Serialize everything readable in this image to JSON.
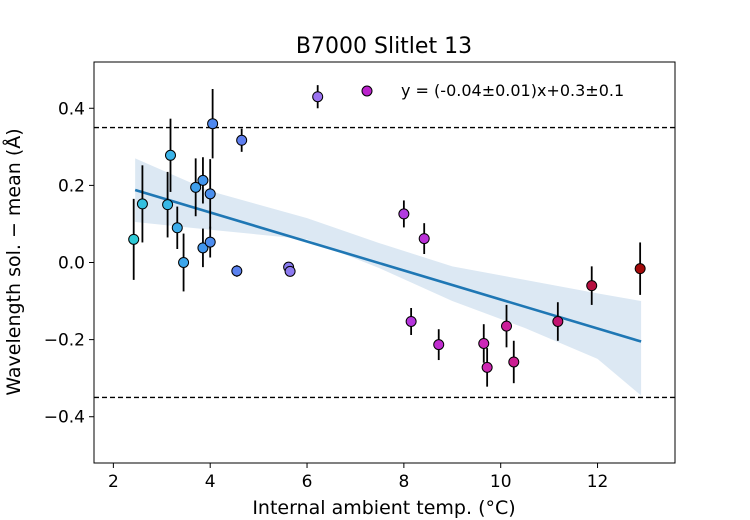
{
  "chart_data": {
    "type": "scatter",
    "title": "B7000 Slitlet 13",
    "xlabel": "Internal ambient temp. (°C)",
    "ylabel": "Wavelength sol. − mean (Å)",
    "xlim": [
      1.6,
      13.6
    ],
    "ylim": [
      -0.52,
      0.52
    ],
    "xticks": [
      2,
      4,
      6,
      8,
      10,
      12
    ],
    "yticks": [
      -0.4,
      -0.2,
      0.0,
      0.2,
      0.4
    ],
    "xtick_labels": [
      "2",
      "4",
      "6",
      "8",
      "10",
      "12"
    ],
    "ytick_labels": [
      "−0.4",
      "−0.2",
      "0.0",
      "0.2",
      "0.4"
    ],
    "threshold_lines": [
      0.35,
      -0.35
    ],
    "legend_label": "y = (-0.04±0.01)x+0.3±0.1",
    "legend_marker_color": "#bb22cc",
    "fit": {
      "x": [
        2.45,
        12.9
      ],
      "y": [
        0.188,
        -0.205
      ],
      "color": "#1f77b4",
      "band_color": "#dce8f3",
      "band": [
        {
          "x": 2.45,
          "lo": 0.105,
          "hi": 0.27
        },
        {
          "x": 4.0,
          "lo": 0.085,
          "hi": 0.185
        },
        {
          "x": 6.0,
          "lo": 0.06,
          "hi": 0.115
        },
        {
          "x": 7.5,
          "lo": -0.015,
          "hi": 0.05
        },
        {
          "x": 9.0,
          "lo": -0.1,
          "hi": -0.01
        },
        {
          "x": 10.5,
          "lo": -0.17,
          "hi": -0.045
        },
        {
          "x": 12.0,
          "lo": -0.25,
          "hi": -0.08
        },
        {
          "x": 12.9,
          "lo": -0.345,
          "hi": -0.1
        }
      ]
    },
    "points": [
      {
        "x": 2.42,
        "y": 0.06,
        "err": 0.105,
        "color": "#2ec9d6"
      },
      {
        "x": 2.6,
        "y": 0.152,
        "err": 0.1,
        "color": "#33c0e0"
      },
      {
        "x": 3.12,
        "y": 0.15,
        "err": 0.085,
        "color": "#37b8e6"
      },
      {
        "x": 3.18,
        "y": 0.278,
        "err": 0.095,
        "color": "#3ab3e8"
      },
      {
        "x": 3.32,
        "y": 0.09,
        "err": 0.055,
        "color": "#3aacea"
      },
      {
        "x": 3.45,
        "y": 0.0,
        "err": 0.075,
        "color": "#3ca6eb"
      },
      {
        "x": 3.7,
        "y": 0.195,
        "err": 0.075,
        "color": "#3e9fec"
      },
      {
        "x": 3.85,
        "y": 0.038,
        "err": 0.05,
        "color": "#4196ed"
      },
      {
        "x": 3.85,
        "y": 0.213,
        "err": 0.06,
        "color": "#4396ee"
      },
      {
        "x": 4.0,
        "y": 0.178,
        "err": 0.09,
        "color": "#4a8fee"
      },
      {
        "x": 4.0,
        "y": 0.053,
        "err": 0.04,
        "color": "#4c8cee"
      },
      {
        "x": 4.05,
        "y": 0.36,
        "err": 0.09,
        "color": "#4e88ef"
      },
      {
        "x": 4.55,
        "y": -0.022,
        "err": 0.015,
        "color": "#5b82ef"
      },
      {
        "x": 4.65,
        "y": 0.317,
        "err": 0.03,
        "color": "#5f7ff0"
      },
      {
        "x": 5.62,
        "y": -0.012,
        "err": 0.01,
        "color": "#8a7cf0"
      },
      {
        "x": 5.65,
        "y": -0.023,
        "err": 0.01,
        "color": "#8d7af0"
      },
      {
        "x": 6.22,
        "y": 0.43,
        "err": 0.03,
        "color": "#9a72ef"
      },
      {
        "x": 8.0,
        "y": 0.126,
        "err": 0.035,
        "color": "#b23be0"
      },
      {
        "x": 8.15,
        "y": -0.153,
        "err": 0.035,
        "color": "#b535dc"
      },
      {
        "x": 8.42,
        "y": 0.062,
        "err": 0.04,
        "color": "#ba31d8"
      },
      {
        "x": 8.72,
        "y": -0.213,
        "err": 0.04,
        "color": "#c02dcf"
      },
      {
        "x": 9.65,
        "y": -0.21,
        "err": 0.05,
        "color": "#cc27b8"
      },
      {
        "x": 9.72,
        "y": -0.272,
        "err": 0.05,
        "color": "#ce26b2"
      },
      {
        "x": 10.12,
        "y": -0.165,
        "err": 0.055,
        "color": "#cc1f99"
      },
      {
        "x": 10.27,
        "y": -0.258,
        "err": 0.055,
        "color": "#cc1e92"
      },
      {
        "x": 11.18,
        "y": -0.153,
        "err": 0.05,
        "color": "#c41470"
      },
      {
        "x": 11.88,
        "y": -0.06,
        "err": 0.05,
        "color": "#b50f3f"
      },
      {
        "x": 12.88,
        "y": -0.016,
        "err": 0.068,
        "color": "#a30a0a"
      }
    ]
  }
}
